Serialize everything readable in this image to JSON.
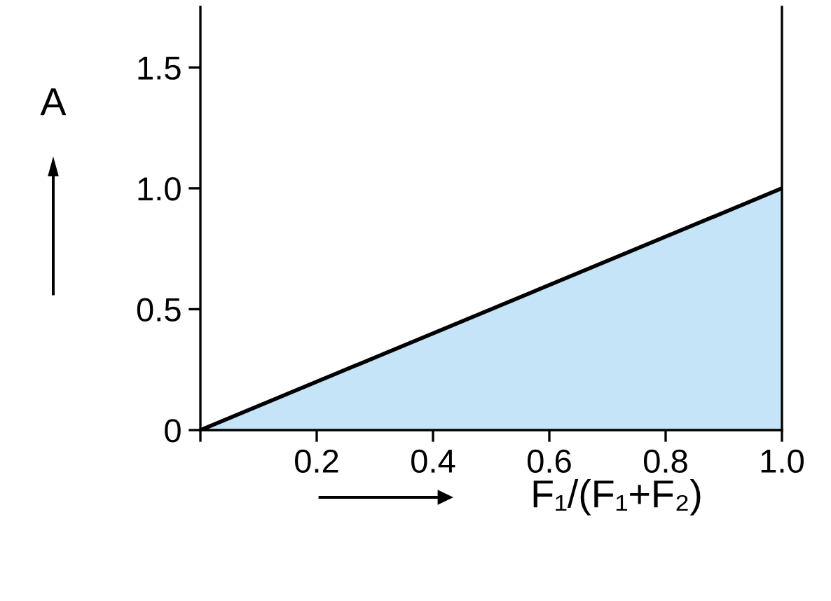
{
  "chart_data": {
    "type": "area",
    "xlabel": "F₁/(F₁+F₂)",
    "ylabel": "A",
    "x": [
      0,
      1
    ],
    "series": [
      {
        "color": "#c6e4f7",
        "values": [
          0,
          1
        ]
      }
    ],
    "xlim": [
      0,
      1
    ],
    "xticks": [
      {
        "value": 0,
        "label": null
      },
      0.2,
      0.4,
      0.6,
      0.8,
      {
        "value": 1,
        "label": "1.0"
      }
    ],
    "ylim": [
      0,
      1.75
    ],
    "yticks": [
      0,
      0.5,
      {
        "value": 1,
        "label": "1.0"
      },
      1.5
    ],
    "grid": false,
    "legend": false
  }
}
